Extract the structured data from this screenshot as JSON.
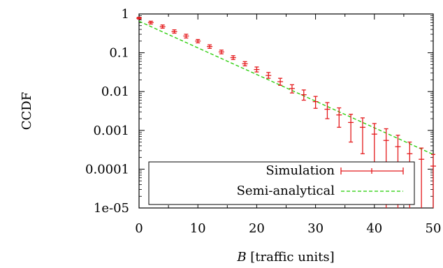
{
  "chart_data": {
    "type": "line",
    "xlabel_var": "B",
    "xlabel_rest": " [traffic units]",
    "ylabel": "CCDF",
    "xlim": [
      0,
      50
    ],
    "ylim": [
      1e-05,
      1
    ],
    "y_scale": "log",
    "grid": false,
    "legend_position": "bottom-left",
    "x_ticks": [
      0,
      10,
      20,
      30,
      40,
      50
    ],
    "y_ticks": [
      {
        "value": 1,
        "label": "1"
      },
      {
        "value": 0.1,
        "label": "0.1"
      },
      {
        "value": 0.01,
        "label": "0.01"
      },
      {
        "value": 0.001,
        "label": "0.001"
      },
      {
        "value": 0.0001,
        "label": "0.0001"
      },
      {
        "value": 1e-05,
        "label": "1e-05"
      }
    ],
    "series": [
      {
        "name": "Simulation",
        "color": "#e41a1c",
        "style": "errorbars",
        "points": [
          {
            "x": 0,
            "y": 0.78,
            "lo": 0.74,
            "hi": 0.82
          },
          {
            "x": 2,
            "y": 0.6,
            "lo": 0.55,
            "hi": 0.65
          },
          {
            "x": 4,
            "y": 0.47,
            "lo": 0.43,
            "hi": 0.52
          },
          {
            "x": 6,
            "y": 0.35,
            "lo": 0.32,
            "hi": 0.39
          },
          {
            "x": 8,
            "y": 0.27,
            "lo": 0.24,
            "hi": 0.3
          },
          {
            "x": 10,
            "y": 0.2,
            "lo": 0.18,
            "hi": 0.22
          },
          {
            "x": 12,
            "y": 0.145,
            "lo": 0.13,
            "hi": 0.16
          },
          {
            "x": 14,
            "y": 0.105,
            "lo": 0.094,
            "hi": 0.117
          },
          {
            "x": 16,
            "y": 0.075,
            "lo": 0.067,
            "hi": 0.084
          },
          {
            "x": 18,
            "y": 0.052,
            "lo": 0.046,
            "hi": 0.059
          },
          {
            "x": 20,
            "y": 0.037,
            "lo": 0.032,
            "hi": 0.043
          },
          {
            "x": 22,
            "y": 0.026,
            "lo": 0.022,
            "hi": 0.031
          },
          {
            "x": 24,
            "y": 0.018,
            "lo": 0.0145,
            "hi": 0.022
          },
          {
            "x": 26,
            "y": 0.012,
            "lo": 0.0092,
            "hi": 0.015
          },
          {
            "x": 28,
            "y": 0.0083,
            "lo": 0.006,
            "hi": 0.011
          },
          {
            "x": 30,
            "y": 0.0055,
            "lo": 0.0037,
            "hi": 0.0075
          },
          {
            "x": 32,
            "y": 0.0035,
            "lo": 0.002,
            "hi": 0.0052
          },
          {
            "x": 34,
            "y": 0.0025,
            "lo": 0.0012,
            "hi": 0.0038
          },
          {
            "x": 36,
            "y": 0.0016,
            "lo": 0.0005,
            "hi": 0.0026
          },
          {
            "x": 38,
            "y": 0.0012,
            "lo": 0.00025,
            "hi": 0.0021
          },
          {
            "x": 40,
            "y": 0.0008,
            "lo": 8e-05,
            "hi": 0.0015
          },
          {
            "x": 42,
            "y": 0.00055,
            "lo": 1e-05,
            "hi": 0.0011
          },
          {
            "x": 44,
            "y": 0.00038,
            "lo": 1e-05,
            "hi": 0.00075
          },
          {
            "x": 46,
            "y": 0.00025,
            "lo": 1e-05,
            "hi": 0.0005
          },
          {
            "x": 48,
            "y": 0.00018,
            "lo": 1e-05,
            "hi": 0.00035
          },
          {
            "x": 50,
            "y": 0.00012,
            "lo": 1e-05,
            "hi": 0.00024
          }
        ]
      },
      {
        "name": "Semi-analytical",
        "color": "#22cc00",
        "style": "dashed",
        "points": [
          {
            "x": 0,
            "y": 0.65
          },
          {
            "x": 50,
            "y": 0.00024
          }
        ]
      }
    ]
  }
}
